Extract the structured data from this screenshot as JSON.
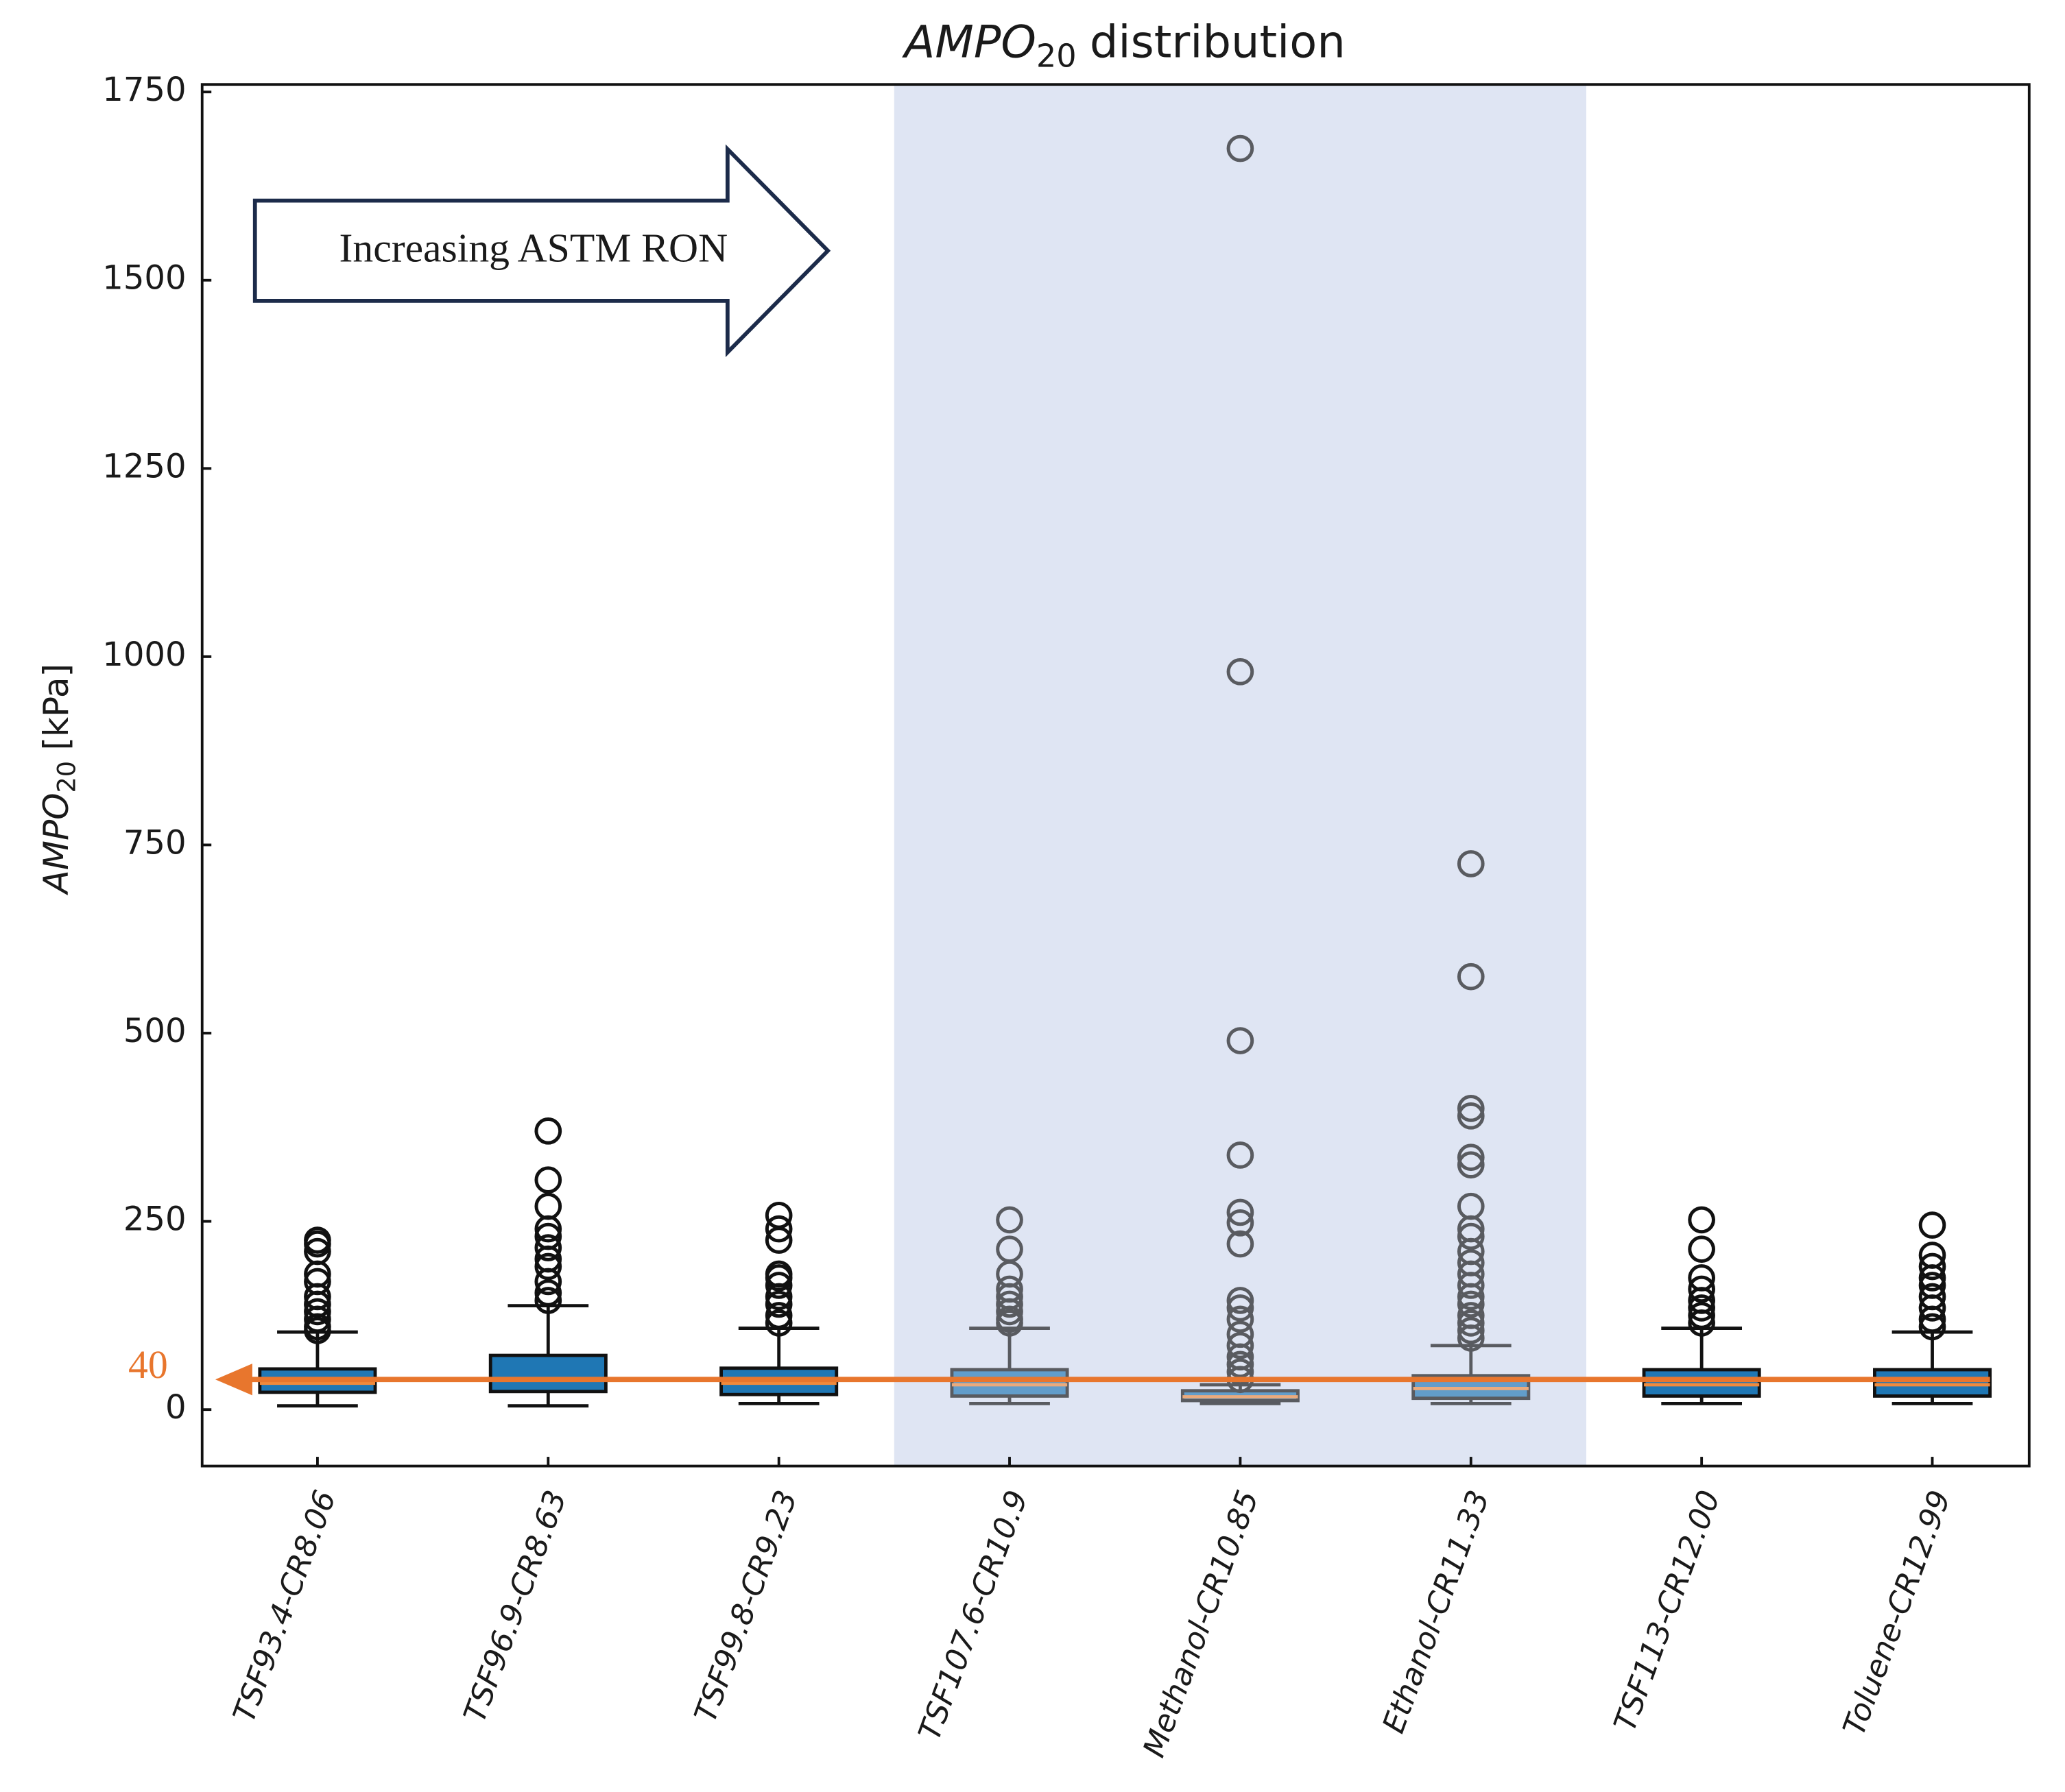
{
  "chart_data": {
    "type": "box",
    "title": {
      "main": "AMPO",
      "sub": "20",
      "rest": "distribution"
    },
    "y_label": {
      "main": "AMPO",
      "sub": "20",
      "rest": "[kPa]"
    },
    "categories": [
      "TSF93.4-CR8.06",
      "TSF96.9-CR8.63",
      "TSF99.8-CR9.23",
      "TSF107.6-CR10.9",
      "Methanol-CR10.85",
      "Ethanol-CR11.33",
      "TSF113-CR12.00",
      "Toluene-CR12.99"
    ],
    "boxes": [
      {
        "whislo": 5,
        "q1": 23,
        "med": 35,
        "q3": 54,
        "whishi": 103,
        "fliers": [
          225,
          220,
          210,
          180,
          170,
          150,
          140,
          130,
          120,
          110,
          105
        ]
      },
      {
        "whislo": 5,
        "q1": 24,
        "med": 40,
        "q3": 72,
        "whishi": 138,
        "fliers": [
          370,
          305,
          270,
          240,
          230,
          215,
          200,
          190,
          170,
          155,
          145
        ]
      },
      {
        "whislo": 8,
        "q1": 20,
        "med": 35,
        "q3": 55,
        "whishi": 108,
        "fliers": [
          258,
          240,
          225,
          180,
          175,
          165,
          150,
          140,
          125,
          115
        ]
      },
      {
        "whislo": 8,
        "q1": 18,
        "med": 33,
        "q3": 53,
        "whishi": 108,
        "fliers": [
          252,
          213,
          180,
          160,
          150,
          140,
          130,
          120,
          115
        ]
      },
      {
        "whislo": 8,
        "q1": 12,
        "med": 17,
        "q3": 25,
        "whishi": 33,
        "fliers": [
          1675,
          980,
          490,
          338,
          262,
          248,
          220,
          145,
          135,
          120,
          100,
          85,
          70,
          60,
          50,
          40
        ]
      },
      {
        "whislo": 8,
        "q1": 15,
        "med": 28,
        "q3": 45,
        "whishi": 85,
        "fliers": [
          725,
          575,
          400,
          390,
          335,
          325,
          270,
          240,
          230,
          210,
          195,
          180,
          165,
          150,
          140,
          125,
          115,
          105,
          95
        ]
      },
      {
        "whislo": 8,
        "q1": 18,
        "med": 33,
        "q3": 53,
        "whishi": 108,
        "fliers": [
          252,
          213,
          175,
          160,
          145,
          135,
          125,
          115
        ]
      },
      {
        "whislo": 8,
        "q1": 18,
        "med": 33,
        "q3": 53,
        "whishi": 103,
        "fliers": [
          245,
          205,
          190,
          175,
          165,
          150,
          135,
          120,
          110
        ]
      }
    ],
    "color": "#1f77b4",
    "median_color": "#f08a3c",
    "xlim": [
      0.5,
      8.42
    ],
    "ylim": [
      -75,
      1760
    ],
    "yticks": [
      0,
      250,
      500,
      750,
      1000,
      1250,
      1500,
      1750
    ],
    "highlight": {
      "span": [
        3.5,
        6.5
      ],
      "color": "#dfe5f3"
    },
    "reference_line": {
      "value": 40,
      "color": "#e8762d"
    },
    "annotation": "Increasing ASTM RON"
  }
}
